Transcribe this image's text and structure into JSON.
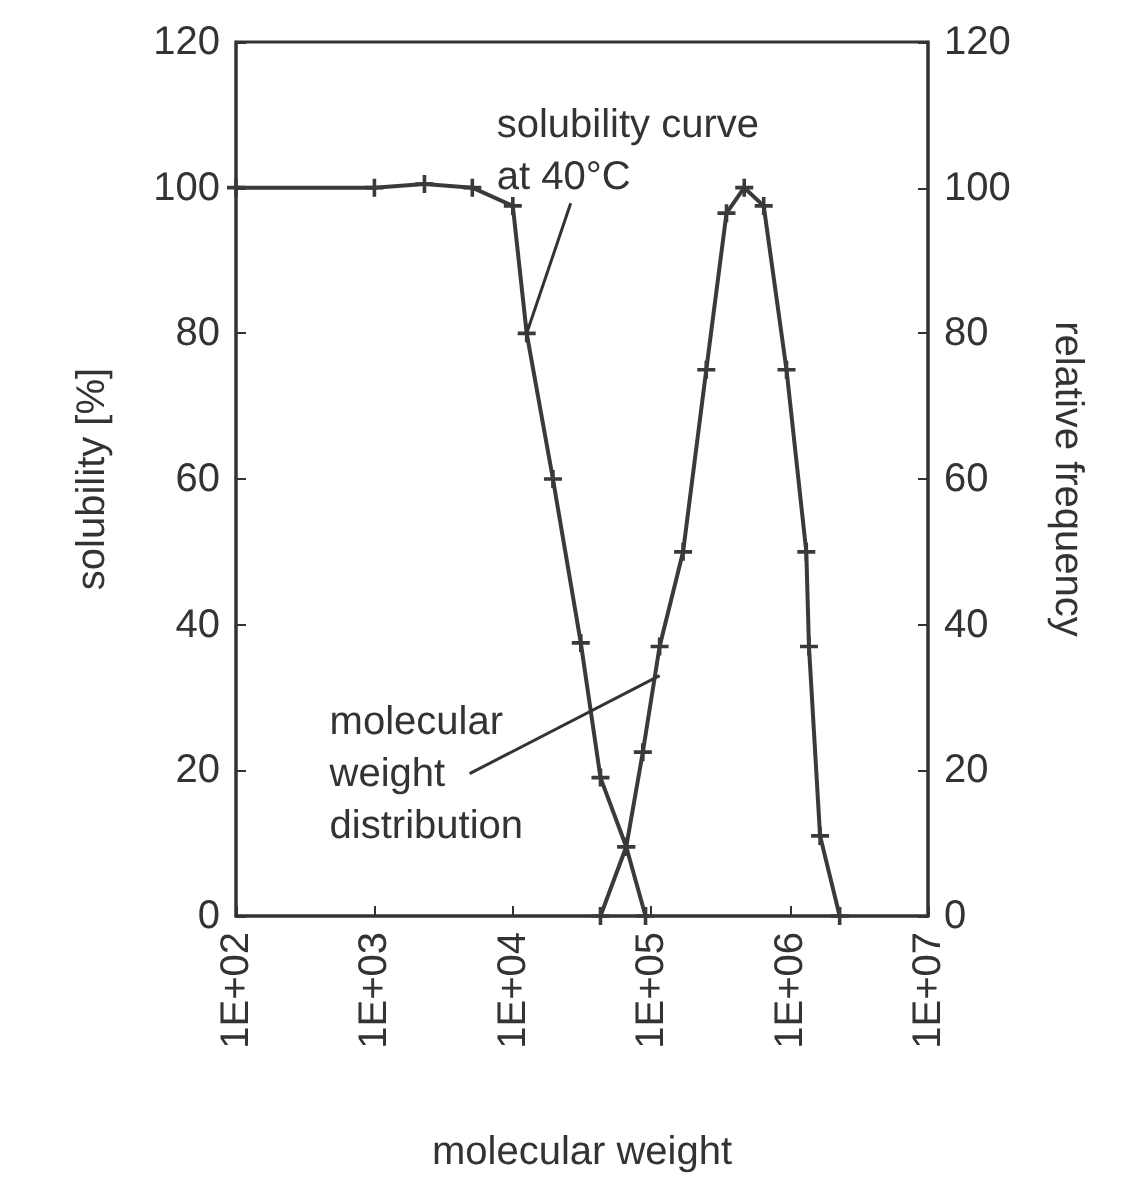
{
  "chart_data": {
    "type": "line",
    "xlabel": "molecular weight",
    "ylabel": "solubility [%]",
    "y2label": "relative frequency",
    "log": "x",
    "grid": false,
    "legend": false,
    "marker": "cross",
    "line_style": "solid",
    "xlim": [
      100,
      10000000
    ],
    "xticks": [
      {
        "value": 100,
        "label": "1E+02"
      },
      {
        "value": 1000,
        "label": "1E+03"
      },
      {
        "value": 10000,
        "label": "1E+04"
      },
      {
        "value": 100000,
        "label": "1E+05"
      },
      {
        "value": 1000000,
        "label": "1E+06"
      },
      {
        "value": 10000000,
        "label": "1E+07"
      }
    ],
    "ylim": [
      0,
      120
    ],
    "yticks": [
      0,
      20,
      40,
      60,
      80,
      100,
      120
    ],
    "y2lim": [
      0,
      120
    ],
    "y2ticks": [
      0,
      20,
      40,
      60,
      80,
      100,
      120
    ],
    "series": [
      {
        "color": "#3a3a3a",
        "x": [
          100,
          1000,
          2300,
          5100,
          10000,
          12600,
          19500,
          31000,
          43000,
          66000,
          91000
        ],
        "values": [
          100,
          100,
          100.5,
          100,
          97.5,
          80,
          60,
          37.5,
          19,
          9.5,
          0
        ]
      },
      {
        "color": "#3a3a3a",
        "axis": "y2",
        "x": [
          43000,
          66000,
          87000,
          115000,
          170000,
          250000,
          350000,
          470000,
          650000,
          950000,
          1320000,
          1380000,
          1660000,
          2300000
        ],
        "values": [
          0,
          9.5,
          22.5,
          37,
          50,
          75,
          96.5,
          100,
          97.5,
          75,
          50,
          37,
          11,
          0
        ]
      }
    ],
    "annotations": [
      {
        "text": "solubility curve at 40°C",
        "x": 12600,
        "y": 80
      },
      {
        "text": "molecular weight distribution",
        "x": 115000,
        "y": 33
      }
    ]
  }
}
